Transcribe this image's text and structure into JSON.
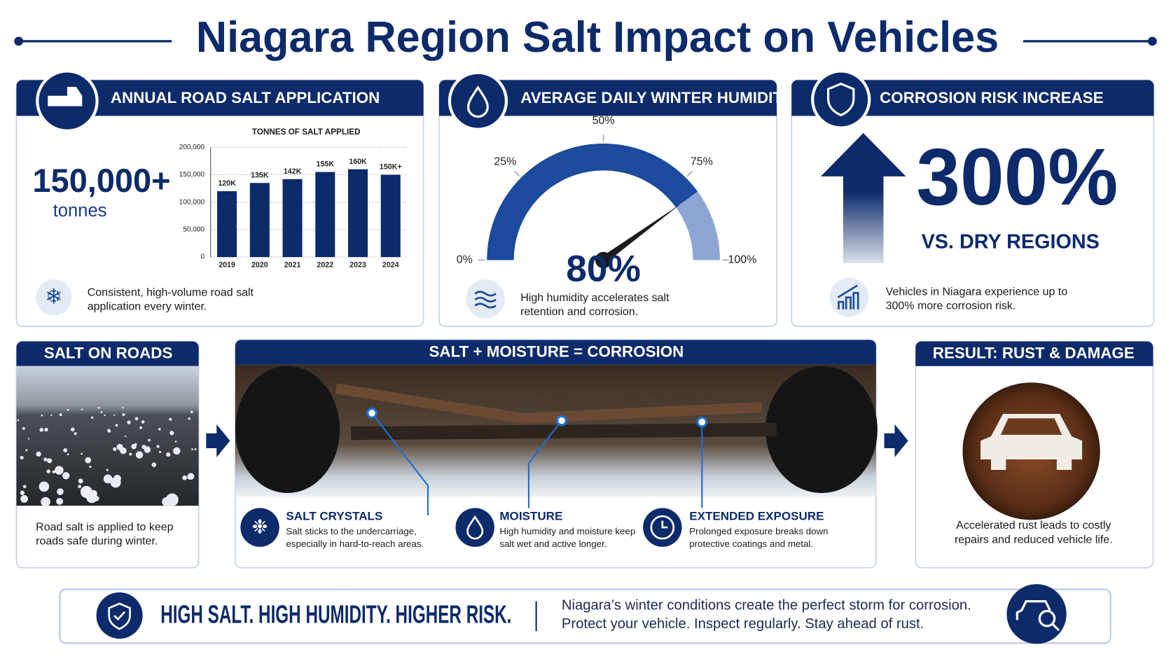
{
  "header": {
    "title": "Niagara Region Salt Impact on Vehicles"
  },
  "panels": {
    "salt_application": {
      "title": "ANNUAL ROAD SALT APPLICATION",
      "stat": "150,000+",
      "stat_unit": "tonnes",
      "note": [
        "Consistent, high-volume road salt",
        "application every winter."
      ]
    },
    "humidity": {
      "note": [
        "High humidity accelerates salt",
        "retention and corrosion."
      ]
    },
    "corrosion_risk": {
      "title": "CORROSION RISK INCREASE",
      "stat": "300%",
      "stat_caption": "VS. DRY REGIONS",
      "note": [
        "Vehicles in Niagara experience up to",
        "300% more corrosion risk."
      ]
    },
    "salt_on_roads": {
      "title": "SALT ON ROADS",
      "note": [
        "Road salt is applied to keep",
        "roads safe during winter."
      ]
    },
    "process": {
      "title": "SALT + MOISTURE = CORROSION",
      "items": [
        {
          "title": "SALT CRYSTALS",
          "text": [
            "Salt sticks to the undercarriage,",
            "especially in hard-to-reach areas."
          ]
        },
        {
          "title": "MOISTURE",
          "text": [
            "High humidity and moisture keep",
            "salt wet and active longer."
          ]
        },
        {
          "title": "EXTENDED EXPOSURE",
          "text": [
            "Prolonged exposure breaks down",
            "protective coatings and metal."
          ]
        }
      ]
    },
    "result": {
      "title": "RESULT: RUST & DAMAGE",
      "note": [
        "Accelerated rust leads to costly",
        "repairs and reduced vehicle life."
      ]
    }
  },
  "banner": {
    "headline": "HIGH SALT. HIGH HUMIDITY. HIGHER RISK.",
    "text": [
      "Niagara’s winter conditions create the perfect storm for corrosion.",
      "Protect your vehicle. Inspect regularly. Stay ahead of rust."
    ]
  },
  "chart_data": [
    {
      "type": "bar",
      "title": "TONNES OF SALT APPLIED",
      "categories": [
        "2019",
        "2020",
        "2021",
        "2022",
        "2023",
        "2024"
      ],
      "values": [
        120000,
        135000,
        142000,
        155000,
        160000,
        150000
      ],
      "value_labels": [
        "120K",
        "135K",
        "142K",
        "155K",
        "160K",
        "150K+"
      ],
      "color": "#0d2a6b",
      "ylim": [
        0,
        200000
      ],
      "yticks": [
        0,
        {
          "value": 50000,
          "label": "50,000"
        },
        {
          "value": 100000,
          "label": "100,000"
        },
        {
          "value": 150000,
          "label": "150,000"
        },
        {
          "value": 200000,
          "label": "200,000"
        }
      ],
      "grid": true
    },
    {
      "type": "gauge",
      "title": "AVERAGE DAILY WINTER HUMIDITY",
      "values": [
        80
      ],
      "value_labels": [
        "80%"
      ],
      "color": "#1c4a9c",
      "track_color": "#8ea6d6",
      "ylim": [
        0,
        100
      ],
      "yticks": [
        {
          "value": 0,
          "label": "0%"
        },
        {
          "value": 25,
          "label": "25%"
        },
        {
          "value": 50,
          "label": "50%"
        },
        {
          "value": 75,
          "label": "75%"
        },
        {
          "value": 100,
          "label": "100%"
        }
      ]
    }
  ]
}
